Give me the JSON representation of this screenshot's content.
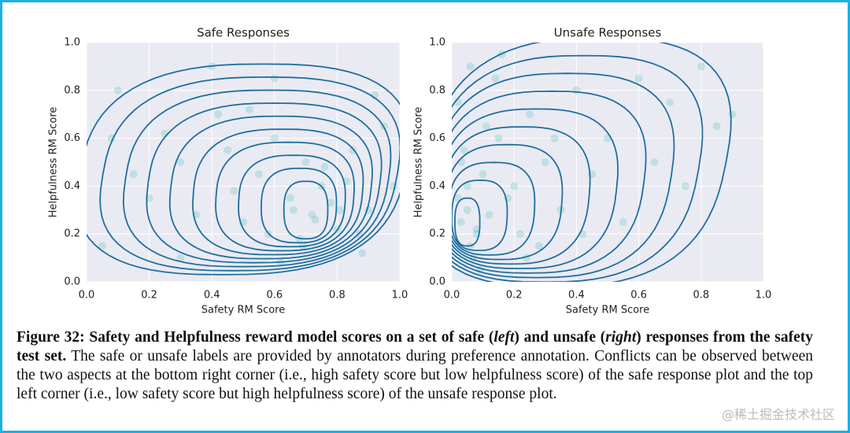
{
  "chart_data": [
    {
      "type": "scatter",
      "title": "Safe Responses",
      "x_label": "Safety RM Score",
      "y_label": "Helpfulness RM Score",
      "color": "#4fc3c0",
      "grid": true,
      "xlim": [
        0,
        1
      ],
      "ylim": [
        0,
        1
      ],
      "xticks": [
        {
          "value": 0,
          "label": "0.0"
        },
        {
          "value": 0.2,
          "label": "0.2"
        },
        {
          "value": 0.4,
          "label": "0.4"
        },
        {
          "value": 0.6,
          "label": "0.6"
        },
        {
          "value": 0.8,
          "label": "0.8"
        },
        {
          "value": 1,
          "label": "1.0"
        }
      ],
      "yticks": [
        {
          "value": 0,
          "label": "0.0"
        },
        {
          "value": 0.2,
          "label": "0.2"
        },
        {
          "value": 0.4,
          "label": "0.4"
        },
        {
          "value": 0.6,
          "label": "0.6"
        },
        {
          "value": 0.8,
          "label": "0.8"
        },
        {
          "value": 1,
          "label": "1.0"
        }
      ],
      "x": [
        0.72,
        0.65,
        0.8,
        0.55,
        0.9,
        0.68,
        0.75,
        0.6,
        0.85,
        0.5,
        0.42,
        0.3,
        0.2,
        0.1,
        0.05,
        0.95,
        0.88,
        0.7,
        0.62,
        0.78,
        0.83,
        0.58,
        0.47,
        0.35,
        0.25,
        0.15,
        0.73,
        0.66,
        0.92,
        0.98,
        0.4,
        0.52,
        0.69,
        0.76,
        0.81,
        0.6,
        0.3,
        0.08,
        0.45,
        0.87
      ],
      "y": [
        0.28,
        0.35,
        0.22,
        0.45,
        0.3,
        0.18,
        0.4,
        0.6,
        0.55,
        0.25,
        0.7,
        0.5,
        0.35,
        0.8,
        0.15,
        0.65,
        0.12,
        0.5,
        0.08,
        0.33,
        0.42,
        0.2,
        0.38,
        0.28,
        0.62,
        0.45,
        0.26,
        0.3,
        0.78,
        0.4,
        0.9,
        0.72,
        0.15,
        0.48,
        0.3,
        0.85,
        0.1,
        0.6,
        0.55,
        0.2
      ]
    },
    {
      "type": "scatter",
      "title": "Unsafe Responses",
      "x_label": "Safety RM Score",
      "y_label": "Helpfulness RM Score",
      "color": "#4fc3c0",
      "grid": true,
      "xlim": [
        0,
        1
      ],
      "ylim": [
        0,
        1
      ],
      "xticks": [
        {
          "value": 0,
          "label": "0.0"
        },
        {
          "value": 0.2,
          "label": "0.2"
        },
        {
          "value": 0.4,
          "label": "0.4"
        },
        {
          "value": 0.6,
          "label": "0.6"
        },
        {
          "value": 0.8,
          "label": "0.8"
        },
        {
          "value": 1,
          "label": "1.0"
        }
      ],
      "yticks": [
        {
          "value": 0,
          "label": "0.0"
        },
        {
          "value": 0.2,
          "label": "0.2"
        },
        {
          "value": 0.4,
          "label": "0.4"
        },
        {
          "value": 0.6,
          "label": "0.6"
        },
        {
          "value": 0.8,
          "label": "0.8"
        },
        {
          "value": 1,
          "label": "1.0"
        }
      ],
      "x": [
        0.03,
        0.05,
        0.08,
        0.02,
        0.1,
        0.06,
        0.12,
        0.04,
        0.15,
        0.07,
        0.2,
        0.25,
        0.3,
        0.35,
        0.4,
        0.5,
        0.6,
        0.7,
        0.8,
        0.05,
        0.09,
        0.11,
        0.02,
        0.18,
        0.22,
        0.28,
        0.45,
        0.55,
        0.65,
        0.9,
        0.14,
        0.06,
        0.03,
        0.33,
        0.42,
        0.75,
        0.85,
        0.16,
        0.08,
        0.24
      ],
      "y": [
        0.25,
        0.3,
        0.2,
        0.35,
        0.45,
        0.15,
        0.28,
        0.55,
        0.6,
        0.1,
        0.4,
        0.7,
        0.5,
        0.3,
        0.8,
        0.6,
        0.85,
        0.75,
        0.9,
        0.4,
        0.05,
        0.65,
        0.75,
        0.35,
        0.2,
        0.15,
        0.45,
        0.25,
        0.5,
        0.7,
        0.85,
        0.9,
        0.5,
        0.6,
        0.2,
        0.4,
        0.65,
        0.95,
        0.22,
        0.1
      ]
    }
  ],
  "caption": {
    "segments": [
      {
        "text": "Figure 32: Safety and Helpfulness reward model scores on a set of safe (",
        "style": "bold"
      },
      {
        "text": "left",
        "style": "bold-italic"
      },
      {
        "text": ") and unsafe (",
        "style": "bold"
      },
      {
        "text": "right",
        "style": "bold-italic"
      },
      {
        "text": ") responses from the safety test set.",
        "style": "bold"
      },
      {
        "text": " The safe or unsafe labels are provided by annotators during preference annotation. Conflicts can be observed between the two aspects at the bottom right corner (i.e., high safety score but low helpfulness score) of the safe response plot and the top left corner (i.e., low safety score but high helpfulness score) of the unsafe response plot.",
        "style": "normal"
      }
    ]
  },
  "watermark": "@稀土掘金技术社区"
}
